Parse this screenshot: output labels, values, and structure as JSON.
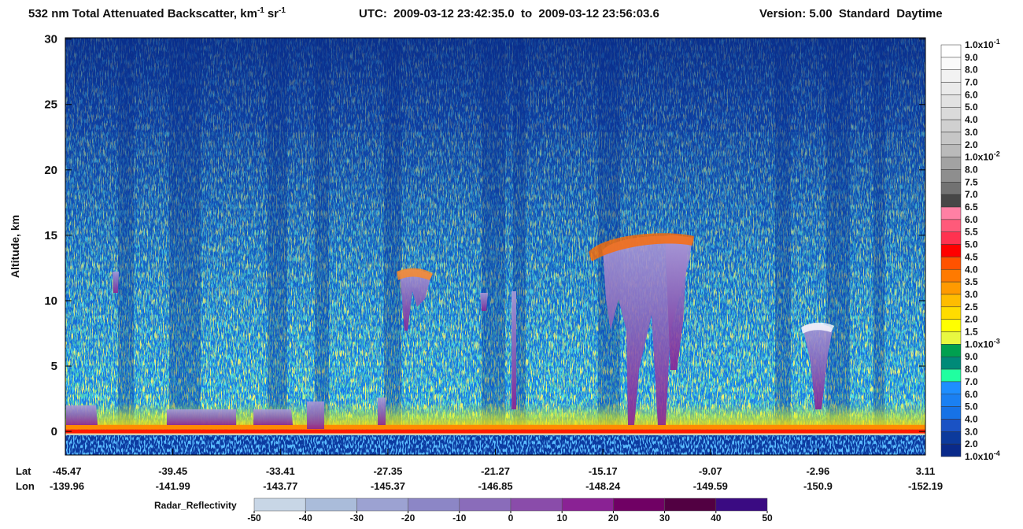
{
  "chart_data": {
    "type": "curtain",
    "title": {
      "text": "532 nm Total Attenuated Backscatter, km",
      "unit_exp": "-1",
      "unit2": "sr",
      "unit2_exp": "-1",
      "utc": "UTC:  2009-03-12 23:42:35.0  to  2009-03-12 23:56:03.6",
      "version": "Version: 5.00  Standard  Daytime"
    },
    "y_label": "Altitude, km",
    "ylim": [
      -1.8,
      30.1
    ],
    "yticks": [
      0,
      5,
      10,
      15,
      20,
      25,
      30
    ],
    "x_axis": {
      "lat_label": "Lat",
      "lon_label": "Lon",
      "ticks": [
        {
          "lat": -45.47,
          "lon": -139.96
        },
        {
          "lat": -39.45,
          "lon": -141.99
        },
        {
          "lat": -33.41,
          "lon": -143.77
        },
        {
          "lat": -27.35,
          "lon": -145.37
        },
        {
          "lat": -21.27,
          "lon": -146.85
        },
        {
          "lat": -15.17,
          "lon": -148.24
        },
        {
          "lat": -9.07,
          "lon": -149.59
        },
        {
          "lat": -2.96,
          "lon": -150.9
        },
        {
          "lat": 3.11,
          "lon": -152.19
        }
      ]
    },
    "colorbar": {
      "labels": [
        {
          "text": "1.0x10",
          "exp": "-1"
        },
        "9.0",
        "8.0",
        "7.0",
        "6.0",
        "5.0",
        "4.0",
        "3.0",
        "2.0",
        {
          "text": "1.0x10",
          "exp": "-2"
        },
        "8.0",
        "7.5",
        "7.0",
        "6.5",
        "6.0",
        "5.5",
        "5.0",
        "4.5",
        "4.0",
        "3.5",
        "3.0",
        "2.5",
        "2.0",
        "1.5",
        {
          "text": "1.0x10",
          "exp": "-3"
        },
        "9.0",
        "8.0",
        "7.0",
        "6.0",
        "5.0",
        "4.0",
        "3.0",
        "2.0",
        {
          "text": "1.0x10",
          "exp": "-4"
        }
      ],
      "colors": [
        "#ffffff",
        "#fafafa",
        "#f2f2f2",
        "#eaeaea",
        "#e2e2e2",
        "#dadada",
        "#d0d0d0",
        "#c6c6c6",
        "#bababa",
        "#a2a2a2",
        "#8e8e8e",
        "#727272",
        "#474747",
        "#ff80a4",
        "#ff5a7a",
        "#ff3250",
        "#ff0000",
        "#ff5200",
        "#ff7a00",
        "#ff9a00",
        "#ffbc00",
        "#ffdc00",
        "#ffff00",
        "#e8f840",
        "#00a050",
        "#008a78",
        "#20ffa0",
        "#1e8eff",
        "#1a80f2",
        "#1672e6",
        "#1a52c4",
        "#0c3a9c",
        "#0a2a8a"
      ]
    },
    "radar": {
      "label": "Radar_Reflectivity",
      "ticks": [
        -50,
        -40,
        -30,
        -20,
        -10,
        0,
        10,
        20,
        30,
        40,
        50
      ],
      "colors": [
        "#c8d6e6",
        "#aabcda",
        "#9ca2d2",
        "#8c86c6",
        "#8a6cba",
        "#8a4caa",
        "#8a2294",
        "#700064",
        "#520042",
        "#3a0a82"
      ]
    }
  }
}
